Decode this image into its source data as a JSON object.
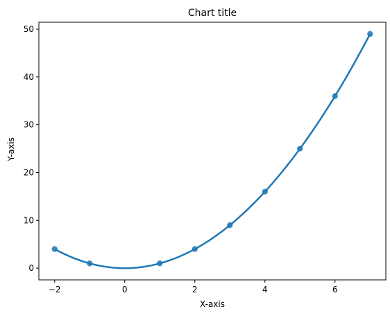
{
  "chart_data": {
    "type": "line",
    "title": "Chart title",
    "xlabel": "X-axis",
    "ylabel": "Y-axis",
    "xlim": [
      -2.45,
      7.45
    ],
    "ylim": [
      -2.45,
      51.45
    ],
    "xticks": [
      -2,
      0,
      2,
      4,
      6
    ],
    "yticks": [
      0,
      10,
      20,
      30,
      40,
      50
    ],
    "xtick_labels": [
      "−2",
      "0",
      "2",
      "4",
      "6"
    ],
    "ytick_labels": [
      "0",
      "10",
      "20",
      "30",
      "40",
      "50"
    ],
    "grid": false,
    "series": [
      {
        "type": "scatter",
        "x": [
          -2,
          -1,
          1,
          2,
          3,
          4,
          5,
          6,
          7
        ],
        "y": [
          4,
          1,
          1,
          4,
          9,
          16,
          25,
          36,
          49
        ],
        "color": "#1f77b4"
      },
      {
        "type": "line",
        "function": "y = x^2",
        "x_range": [
          -2,
          7
        ],
        "color": "#1f77b4"
      }
    ]
  }
}
